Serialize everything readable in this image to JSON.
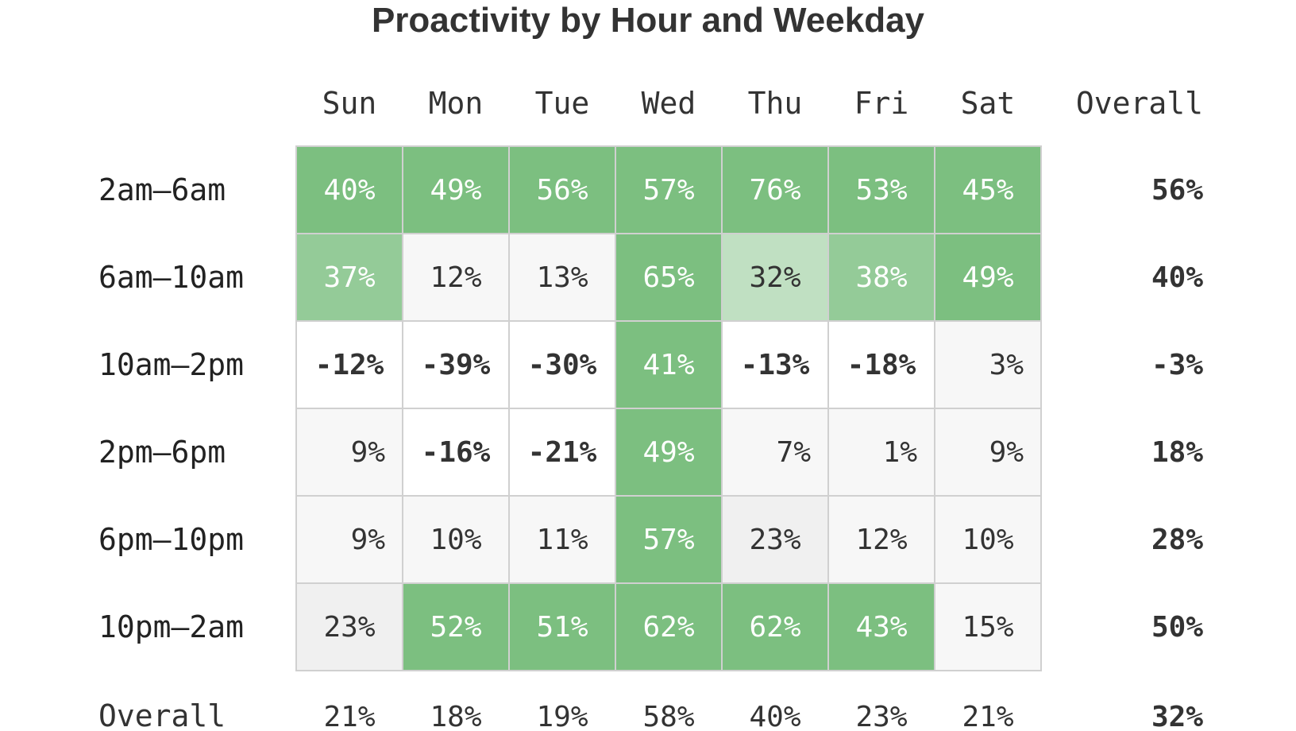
{
  "chart_data": {
    "type": "heatmap",
    "title": "Proactivity by Hour and Weekday",
    "columns": [
      "Sun",
      "Mon",
      "Tue",
      "Wed",
      "Thu",
      "Fri",
      "Sat"
    ],
    "overall_column_label": "Overall",
    "rows": [
      "2am–6am",
      "6am–10am",
      "10am–2pm",
      "2pm–6pm",
      "6pm–10pm",
      "10pm–2am"
    ],
    "overall_row_label": "Overall",
    "values": [
      [
        40,
        49,
        56,
        57,
        76,
        53,
        45
      ],
      [
        37,
        12,
        13,
        65,
        32,
        38,
        49
      ],
      [
        -12,
        -39,
        -30,
        41,
        -13,
        -18,
        3
      ],
      [
        9,
        -16,
        -21,
        49,
        7,
        1,
        9
      ],
      [
        9,
        10,
        11,
        57,
        23,
        12,
        10
      ],
      [
        23,
        52,
        51,
        62,
        62,
        43,
        15
      ]
    ],
    "row_overall": [
      56,
      40,
      -3,
      18,
      28,
      50
    ],
    "column_overall": [
      21,
      18,
      19,
      58,
      40,
      23,
      21
    ],
    "grand_overall": 32,
    "unit": "%",
    "colors": {
      "green": "#7cbf80",
      "green_light": "#94cb98",
      "green_pale": "#c0e0c2",
      "gray_light": "#f0f0f0",
      "white": "#ffffff",
      "text_dark": "#333333",
      "text_light": "#ffffff",
      "grid": "#d0d0d0"
    }
  }
}
